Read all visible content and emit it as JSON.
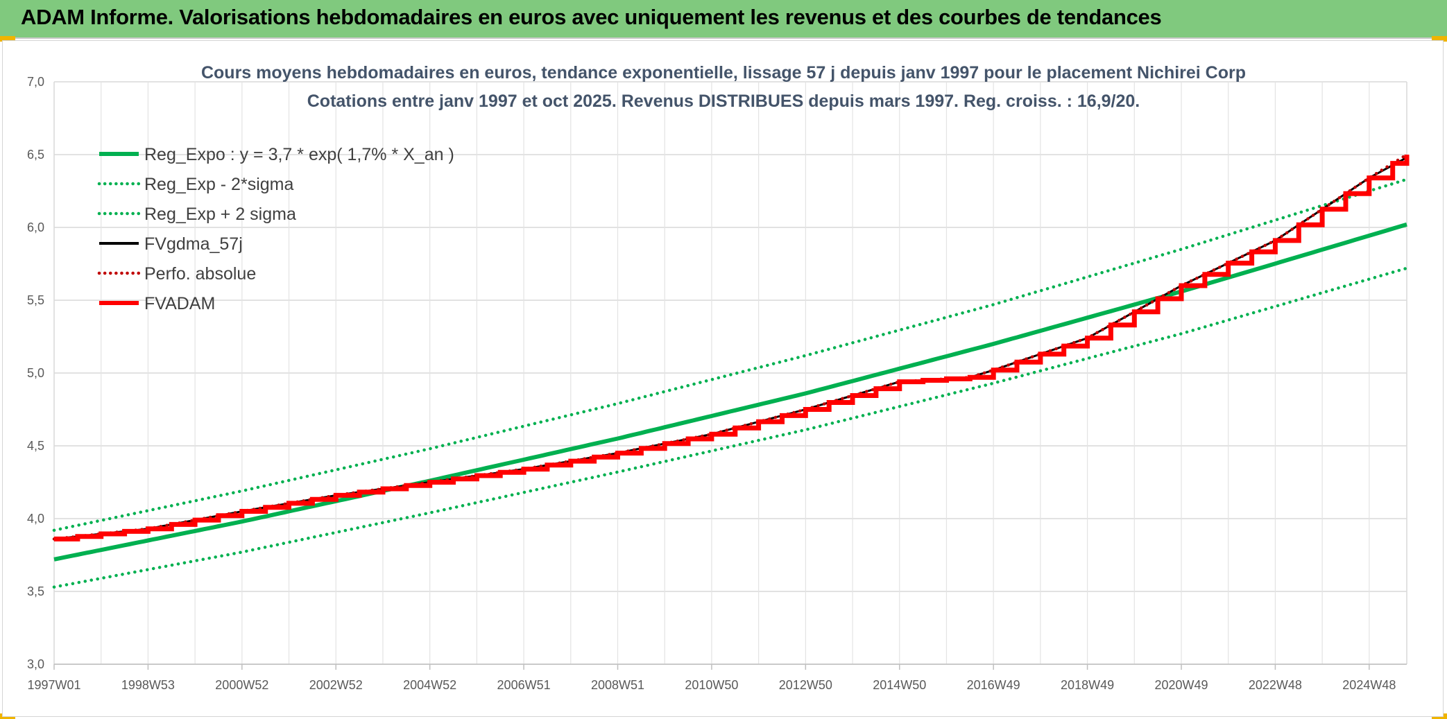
{
  "header": {
    "title": "ADAM Informe. Valorisations hebdomadaires en euros avec uniquement les revenus et des courbes de tendances"
  },
  "colors": {
    "header_bg": "#80c97e",
    "reg_green": "#00b050",
    "band_green": "#00b050",
    "smooth_black": "#000000",
    "perf_red": "#c00000",
    "adam_red": "#ff0000",
    "corner_accent": "#f0b400"
  },
  "chart_data": {
    "type": "line",
    "title_line1": "Cours moyens hebdomadaires en euros, tendance exponentielle, lissage 57 j depuis janv 1997 pour le placement Nichirei Corp",
    "title_line2": "Cotations entre janv 1997 et oct 2025. Revenus DISTRIBUES depuis mars 1997. Reg. croiss. : 16,9/20.",
    "xlabel": "",
    "ylabel": "",
    "ylim": [
      3.0,
      7.0
    ],
    "yticks": [
      "3,0",
      "3,5",
      "4,0",
      "4,5",
      "5,0",
      "5,5",
      "6,0",
      "6,5",
      "7,0"
    ],
    "ytick_values": [
      3.0,
      3.5,
      4.0,
      4.5,
      5.0,
      5.5,
      6.0,
      6.5,
      7.0
    ],
    "xlim": [
      1997.0,
      2025.8
    ],
    "xtick_labels": [
      "1997W01",
      "1998W53",
      "2000W52",
      "2002W52",
      "2004W52",
      "2006W51",
      "2008W51",
      "2010W50",
      "2012W50",
      "2014W50",
      "2016W49",
      "2018W49",
      "2020W49",
      "2022W48",
      "2024W48"
    ],
    "xtick_years": [
      1997.0,
      1999.0,
      2001.0,
      2003.0,
      2005.0,
      2007.0,
      2009.0,
      2011.0,
      2013.0,
      2015.0,
      2017.0,
      2019.0,
      2021.0,
      2023.0,
      2025.0
    ],
    "grid": true,
    "legend_position": "top-left",
    "series": [
      {
        "name": "Reg_Expo : y = 3,7 * exp( 1,7% *  X_an )",
        "style": "solid-thick",
        "color": "#00b050",
        "x": [
          1997.0,
          2001.0,
          2005.0,
          2009.0,
          2013.0,
          2017.0,
          2021.0,
          2025.8
        ],
        "y": [
          3.72,
          3.98,
          4.26,
          4.55,
          4.86,
          5.2,
          5.56,
          6.02
        ]
      },
      {
        "name": "Reg_Exp - 2*sigma",
        "style": "dotted",
        "color": "#00b050",
        "x": [
          1997.0,
          2001.0,
          2005.0,
          2009.0,
          2013.0,
          2017.0,
          2021.0,
          2025.8
        ],
        "y": [
          3.53,
          3.77,
          4.04,
          4.32,
          4.61,
          4.93,
          5.27,
          5.72
        ]
      },
      {
        "name": "Reg_Exp + 2 sigma",
        "style": "dotted",
        "color": "#00b050",
        "x": [
          1997.0,
          2001.0,
          2005.0,
          2009.0,
          2013.0,
          2017.0,
          2021.0,
          2025.8
        ],
        "y": [
          3.92,
          4.19,
          4.48,
          4.79,
          5.12,
          5.47,
          5.85,
          6.33
        ]
      },
      {
        "name": "FVgdma_57j",
        "style": "solid-thin",
        "color": "#000000",
        "x": [
          1997.0,
          1999.0,
          2001.0,
          2003.0,
          2005.0,
          2007.0,
          2009.0,
          2011.0,
          2013.0,
          2015.0,
          2016.5,
          2017.0,
          2019.0,
          2021.0,
          2023.0,
          2025.0,
          2025.8
        ],
        "y": [
          3.86,
          3.93,
          4.05,
          4.16,
          4.25,
          4.34,
          4.45,
          4.58,
          4.75,
          4.94,
          4.97,
          5.02,
          5.24,
          5.6,
          5.91,
          6.34,
          6.48
        ]
      },
      {
        "name": "Perfo. absolue",
        "style": "dotted",
        "color": "#c00000",
        "x": [
          1997.0,
          1999.0,
          2001.0,
          2003.0,
          2005.0,
          2007.0,
          2009.0,
          2011.0,
          2013.0,
          2015.0,
          2016.5,
          2017.0,
          2019.0,
          2021.0,
          2023.0,
          2025.0,
          2025.8
        ],
        "y": [
          3.86,
          3.93,
          4.05,
          4.16,
          4.25,
          4.34,
          4.45,
          4.58,
          4.75,
          4.94,
          4.97,
          5.02,
          5.24,
          5.6,
          5.91,
          6.34,
          6.5
        ]
      },
      {
        "name": "FVADAM",
        "style": "step-thick",
        "color": "#ff0000",
        "x": [
          1997.0,
          1999.0,
          2001.0,
          2003.0,
          2005.0,
          2007.0,
          2009.0,
          2011.0,
          2013.0,
          2015.0,
          2016.5,
          2017.0,
          2019.0,
          2021.0,
          2023.0,
          2025.0,
          2025.8
        ],
        "y": [
          3.86,
          3.93,
          4.05,
          4.16,
          4.25,
          4.34,
          4.45,
          4.58,
          4.75,
          4.94,
          4.97,
          5.02,
          5.24,
          5.6,
          5.91,
          6.34,
          6.5
        ]
      }
    ]
  }
}
